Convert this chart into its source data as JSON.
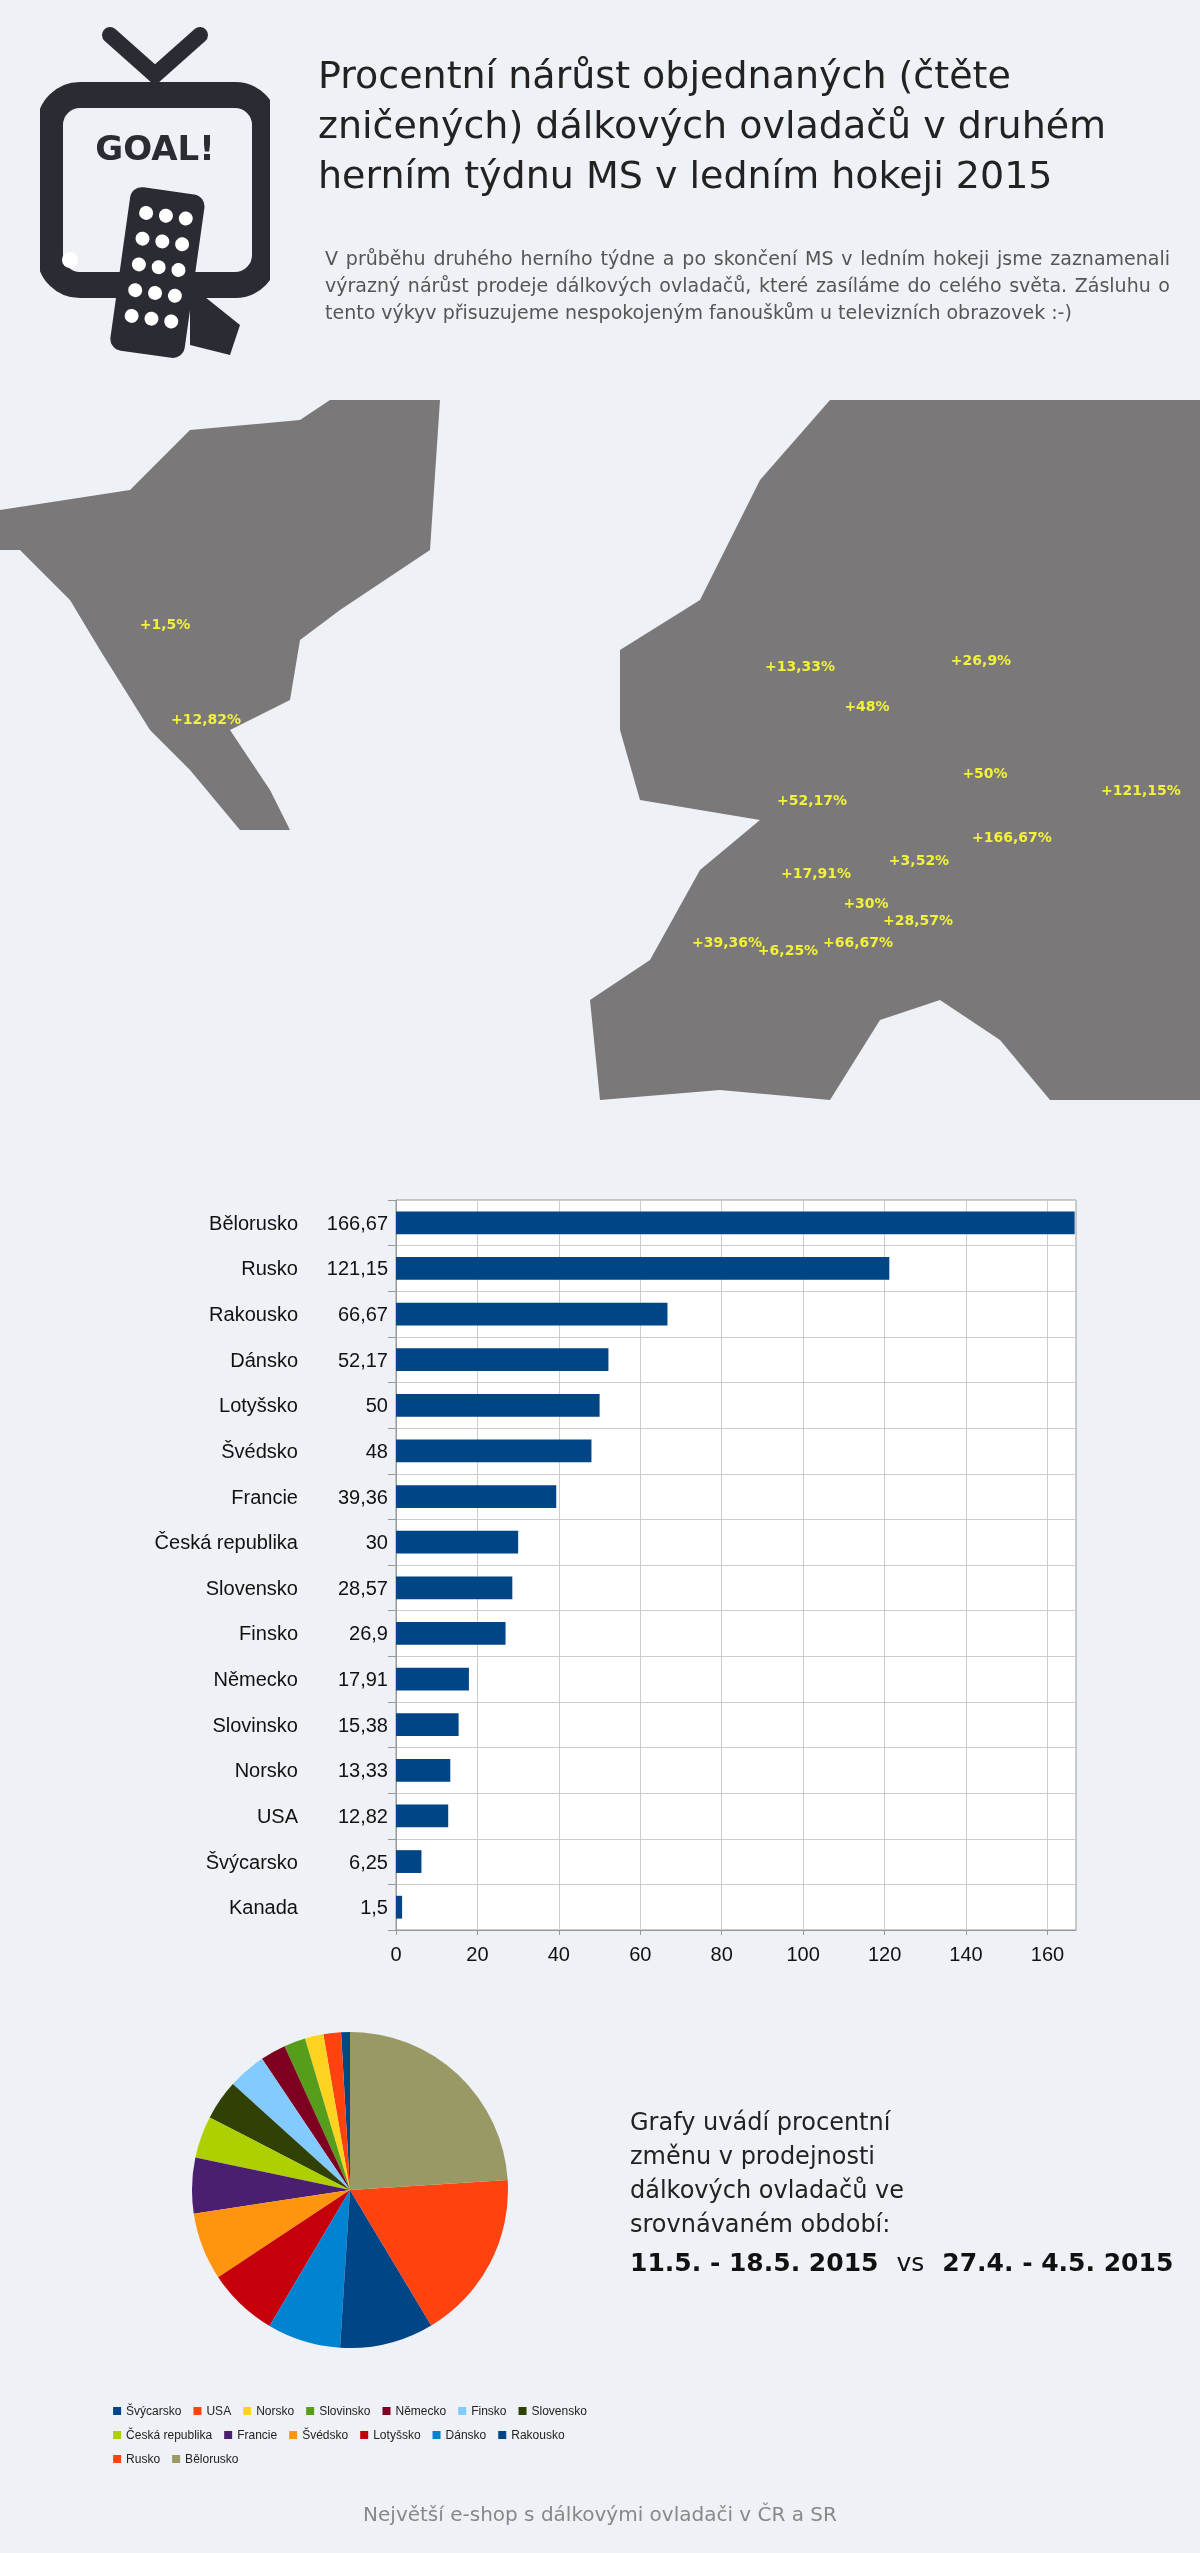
{
  "chart_data": [
    {
      "type": "other",
      "title": "Procentní nárůst objednaných (čtěte zničených) dálkových ovladačů v druhém herním týdnu MS v ledním hokeji 2015",
      "subtitle": "V průběhu druhého herního týdne a po skončení MS v ledním hokeji jsme zaznamenali výrazný nárůst prodeje dálkových ovladačů, které zasíláme do celého světa. Zásluhu o tento výkyv přisuzujeme nespokojeným fanouškům u televizních obrazovek :-)",
      "annotations": [
        "GOAL!",
        "+1,5%",
        "+12,82%",
        "+13,33%",
        "+48%",
        "+26,9%",
        "+50%",
        "+121,15%",
        "+52,17%",
        "+166,67%",
        "+17,91%",
        "+3,52%",
        "+30%",
        "+28,57%",
        "+39,36%",
        "+6,25%",
        "+66,67%"
      ]
    },
    {
      "type": "bar",
      "orientation": "horizontal",
      "categories": [
        "Bělorusko",
        "Rusko",
        "Rakousko",
        "Dánsko",
        "Lotyšsko",
        "Švédsko",
        "Francie",
        "Česká republika",
        "Slovensko",
        "Finsko",
        "Německo",
        "Slovinsko",
        "Norsko",
        "USA",
        "Švýcarsko",
        "Kanada"
      ],
      "values": [
        166.67,
        121.15,
        66.67,
        52.17,
        50,
        48,
        39.36,
        30,
        28.57,
        26.9,
        17.91,
        15.38,
        13.33,
        12.82,
        6.25,
        1.5
      ],
      "value_labels": [
        "166,67",
        "121,15",
        "66,67",
        "52,17",
        "50",
        "48",
        "39,36",
        "30",
        "28,57",
        "26,9",
        "17,91",
        "15,38",
        "13,33",
        "12,82",
        "6,25",
        "1,5"
      ],
      "color": "#004586",
      "xlim": [
        0,
        167
      ],
      "xticks": [
        0,
        20,
        40,
        60,
        80,
        100,
        120,
        140,
        160
      ],
      "grid": true
    },
    {
      "type": "pie",
      "categories": [
        "Švýcarsko",
        "USA",
        "Norsko",
        "Slovinsko",
        "Německo",
        "Finsko",
        "Slovensko",
        "Česká republika",
        "Francie",
        "Švédsko",
        "Lotyšsko",
        "Dánsko",
        "Rakousko",
        "Rusko",
        "Bělorusko"
      ],
      "values": [
        0.9,
        1.8,
        1.9,
        2.2,
        2.6,
        3.9,
        4.1,
        4.3,
        5.7,
        6.9,
        7.2,
        7.5,
        9.6,
        17.4,
        24.0
      ],
      "colors": [
        "#004586",
        "#ff420e",
        "#ffd320",
        "#579d1c",
        "#7e0021",
        "#83caff",
        "#314004",
        "#aecf00",
        "#4b1f6f",
        "#ff950e",
        "#c5000b",
        "#0084d1",
        "#004586",
        "#ff420e",
        "#999966"
      ],
      "legend": "bottom",
      "annotations": [
        "Grafy uvádí procentní změnu v prodejnosti dálkových ovladačů ve srovnávaném období:",
        "11.5. - 18.5. 2015",
        "vs",
        "27.4. - 4.5. 2015",
        "Největší e-shop s dálkovými ovladači v ČR a SR"
      ]
    }
  ]
}
